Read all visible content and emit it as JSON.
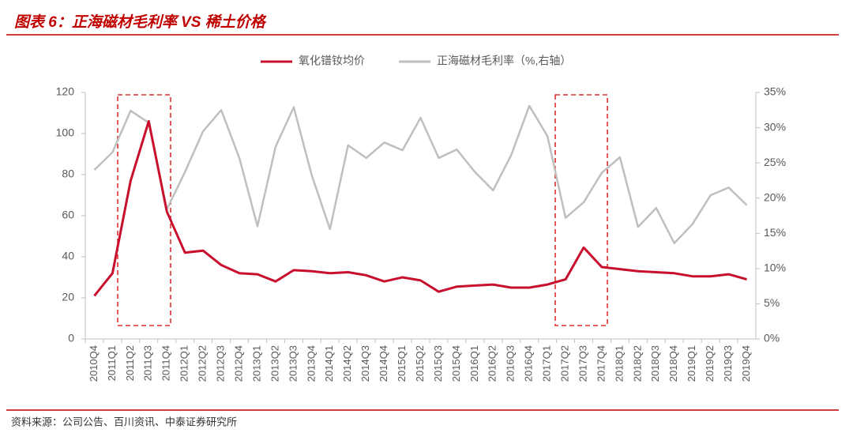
{
  "chart_data": {
    "type": "line",
    "title": "图表 6：正海磁材毛利率 VS 稀土价格",
    "source": "资料来源：公司公告、百川资讯、中泰证券研究所",
    "categories": [
      "2010Q4",
      "2011Q1",
      "2011Q2",
      "2011Q3",
      "2011Q4",
      "2012Q1",
      "2012Q2",
      "2012Q3",
      "2012Q4",
      "2013Q1",
      "2013Q2",
      "2013Q3",
      "2013Q4",
      "2014Q1",
      "2014Q2",
      "2014Q3",
      "2014Q4",
      "2015Q1",
      "2015Q2",
      "2015Q3",
      "2015Q4",
      "2016Q1",
      "2016Q2",
      "2016Q3",
      "2016Q4",
      "2017Q1",
      "2017Q2",
      "2017Q3",
      "2017Q4",
      "2018Q1",
      "2018Q2",
      "2018Q3",
      "2018Q4",
      "2019Q1",
      "2019Q2",
      "2019Q3",
      "2019Q4"
    ],
    "series": [
      {
        "name": "氧化镨钕均价",
        "color": "#c8102e",
        "values": [
          21,
          32,
          77,
          106,
          62,
          42,
          43,
          36,
          32,
          31.5,
          28,
          33.5,
          33,
          32,
          32.5,
          31,
          28,
          30,
          28.5,
          23,
          25.5,
          26,
          26.5,
          25,
          25,
          26.5,
          29,
          44.5,
          35,
          34,
          33,
          32.5,
          32,
          30.5,
          30.5,
          31.5,
          29
        ]
      },
      {
        "name": "正海磁材毛利率（%,右轴）",
        "color": "#bfbfbf",
        "axis": "y2",
        "values": [
          24,
          26.5,
          32.4,
          30.7,
          18.4,
          23.7,
          29.5,
          32.5,
          25.7,
          16,
          27.3,
          32.9,
          23.2,
          15.6,
          27.5,
          25.7,
          27.9,
          26.8,
          31.4,
          25.7,
          26.9,
          23.7,
          21.1,
          26.1,
          33.1,
          28.8,
          17.2,
          19.4,
          23.6,
          25.8,
          15.9,
          18.6,
          13.6,
          16.3,
          20.4,
          21.5,
          19
        ]
      }
    ],
    "ylim": [
      0,
      120
    ],
    "yticks": [
      0,
      20,
      40,
      60,
      80,
      100,
      120
    ],
    "y2lim": [
      0,
      35
    ],
    "y2ticks": [
      {
        "value": 0,
        "label": "0%"
      },
      {
        "value": 5,
        "label": "5%"
      },
      {
        "value": 10,
        "label": "10%"
      },
      {
        "value": 15,
        "label": "15%"
      },
      {
        "value": 20,
        "label": "20%"
      },
      {
        "value": 25,
        "label": "25%"
      },
      {
        "value": 30,
        "label": "30%"
      },
      {
        "value": 35,
        "label": "35%"
      }
    ],
    "legend": "top"
  }
}
